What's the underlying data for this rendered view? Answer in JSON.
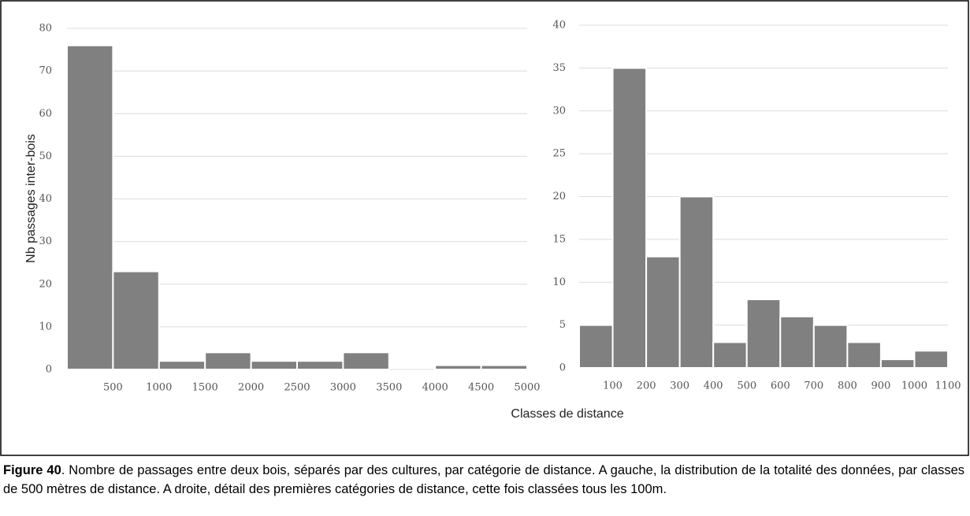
{
  "y_label": "Nb passages inter-bois",
  "x_label": "Classes de distance",
  "caption": {
    "label": "Figure 40",
    "text": ". Nombre de passages entre deux bois, séparés par des cultures, par catégorie de distance. A gauche, la distribution de la totalité des données, par classes de 500 mètres de distance. A droite, détail des premières catégories de distance, cette fois classées tous les 100m."
  },
  "chart_data": [
    {
      "type": "histogram",
      "color": "#808080",
      "grid": true,
      "bins": [
        0,
        500,
        1000,
        1500,
        2000,
        2500,
        3000,
        3500,
        4000,
        4500,
        5000
      ],
      "values": [
        76,
        23,
        2,
        4,
        2,
        2,
        4,
        0,
        1,
        1
      ],
      "xlim": [
        0,
        5000
      ],
      "xticks": [
        500,
        1000,
        1500,
        2000,
        2500,
        3000,
        3500,
        4000,
        4500,
        5000
      ],
      "ylim": [
        0,
        80
      ],
      "yticks": [
        0,
        10,
        20,
        30,
        40,
        50,
        60,
        70,
        80
      ]
    },
    {
      "type": "histogram",
      "color": "#808080",
      "grid": true,
      "bins": [
        0,
        100,
        200,
        300,
        400,
        500,
        600,
        700,
        800,
        900,
        1000,
        1100
      ],
      "values": [
        5,
        35,
        13,
        20,
        3,
        8,
        6,
        5,
        3,
        1,
        2
      ],
      "xlim": [
        0,
        1100
      ],
      "xticks": [
        100,
        200,
        300,
        400,
        500,
        600,
        700,
        800,
        900,
        1000,
        1100
      ],
      "ylim": [
        0,
        40
      ],
      "yticks": [
        0,
        5,
        10,
        15,
        20,
        25,
        30,
        35,
        40
      ]
    }
  ]
}
